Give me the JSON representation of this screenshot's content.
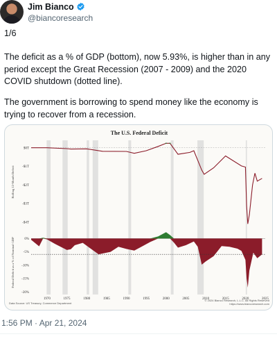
{
  "author": {
    "name": "Jim Bianco",
    "handle": "@biancoresearch",
    "verified": true,
    "avatar": "avatar-photo"
  },
  "tweet": {
    "thread_count": "1/6",
    "paragraph_1": "The deficit as a % of GDP (bottom), now 5.93%, is higher than in any period except the Great Recession (2007 - 2009) and the 2020 COVID shutdown (dotted line).",
    "paragraph_2": "The government is borrowing to spend money like the economy is trying to recover from a recession.",
    "timestamp": "1:56 PM · Apr 21, 2024"
  },
  "icons": {
    "verified": "verified-badge-icon"
  },
  "colors": {
    "verified": "#1d9bf0",
    "deficit": "#8b1c2a",
    "surplus": "#2e7d32",
    "recession_band": "#d0d0d0"
  },
  "chart_data": [
    {
      "type": "line",
      "title": "The U.S. Federal Deficit",
      "ylabel": "Rolling 12-Month Deficit",
      "yticks": [
        "$0T",
        "-$1T",
        "-$2T",
        "-$3T",
        "-$4T"
      ],
      "ylim": [
        -4.2,
        0.4
      ],
      "xlim": [
        1966,
        2025
      ],
      "x": [
        1966,
        1970,
        1975,
        1976,
        1980,
        1984,
        1990,
        1992,
        1995,
        1998,
        2000,
        2001,
        2003,
        2006,
        2007,
        2009,
        2009.6,
        2012,
        2015,
        2019,
        2020,
        2020.3,
        2020.6,
        2021,
        2021.8,
        2022.4,
        2023,
        2024.2
      ],
      "values": [
        0.0,
        0.0,
        -0.05,
        -0.07,
        -0.06,
        -0.19,
        -0.2,
        -0.3,
        -0.16,
        0.07,
        0.24,
        0.24,
        -0.35,
        -0.25,
        -0.16,
        -1.2,
        -1.43,
        -1.08,
        -0.44,
        -0.98,
        -1.04,
        -3.1,
        -4.1,
        -3.6,
        -2.0,
        -1.37,
        -1.8,
        -1.65
      ],
      "grid": false
    },
    {
      "type": "area",
      "ylabel": "Federal Deficit as a % of Nominal GDP",
      "yticks": [
        "0%",
        "-5%",
        "-10%",
        "-15%",
        "-20%"
      ],
      "xticks": [
        "1970",
        "1975",
        "1980",
        "1985",
        "1990",
        "1995",
        "2000",
        "2005",
        "2010",
        "2015",
        "2020",
        "2025"
      ],
      "ylim": [
        -21,
        3.5
      ],
      "xlim": [
        1966,
        2025
      ],
      "x": [
        1966,
        1968,
        1969,
        1970,
        1972,
        1975,
        1976,
        1977,
        1979,
        1980,
        1983,
        1986,
        1988,
        1990,
        1992,
        1994,
        1996,
        1998,
        2000,
        2001,
        2002,
        2003,
        2005,
        2007,
        2008,
        2009,
        2010,
        2012,
        2014,
        2016,
        2018,
        2019,
        2020,
        2020.3,
        2020.6,
        2021,
        2022,
        2023,
        2024.2
      ],
      "values": [
        -0.5,
        -2.9,
        0.3,
        -0.3,
        -2.0,
        -4.3,
        -4.0,
        -2.5,
        -1.6,
        -2.7,
        -5.9,
        -5.0,
        -3.1,
        -3.9,
        -4.5,
        -2.9,
        -1.3,
        0.8,
        2.4,
        1.3,
        -1.5,
        -3.4,
        -2.5,
        -1.1,
        -3.1,
        -9.8,
        -8.6,
        -6.6,
        -2.8,
        -3.1,
        -3.8,
        -4.6,
        -8.0,
        -14.9,
        -18.4,
        -12.0,
        -5.3,
        -7.4,
        -5.93
      ],
      "reference_line": -5.93,
      "grid": false
    }
  ],
  "chart_labels": {
    "note_left": "Data Source: US Treasury, Commerce Department",
    "note_right": "© 2024 Bianco Research, L.L.C. All Rights Reserved\nhttps://www.biancoresearch.com"
  },
  "recession_bands": [
    [
      1969.9,
      1970.9
    ],
    [
      1973.9,
      1975.2
    ],
    [
      1980.0,
      1980.6
    ],
    [
      1981.5,
      1982.9
    ],
    [
      1990.5,
      1991.2
    ],
    [
      2001.2,
      2001.9
    ],
    [
      2007.9,
      2009.5
    ],
    [
      2020.1,
      2020.4
    ]
  ]
}
